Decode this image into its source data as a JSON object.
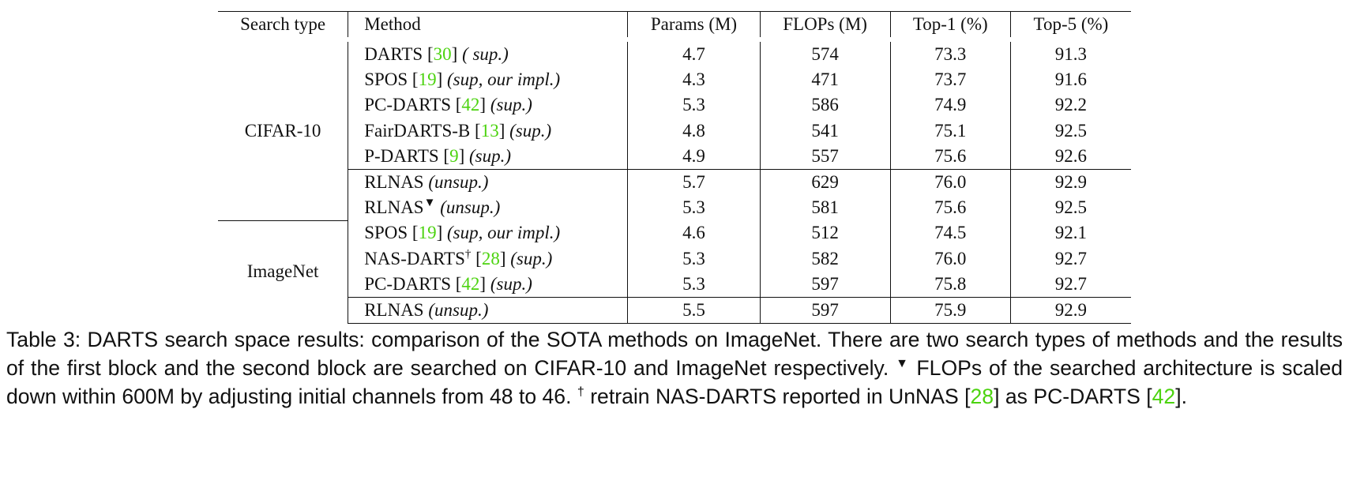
{
  "table": {
    "headers": [
      "Search type",
      "Method",
      "Params (M)",
      "FLOPs (M)",
      "Top-1 (%)",
      "Top-5 (%)"
    ],
    "groups": [
      {
        "search_type": "CIFAR-10",
        "rows": [
          {
            "method": "DARTS",
            "ref": "30",
            "tag": "( sup.)",
            "params": "4.7",
            "flops": "574",
            "top1": "73.3",
            "top5": "91.3"
          },
          {
            "method": "SPOS",
            "ref": "19",
            "tag": "(sup, our impl.)",
            "params": "4.3",
            "flops": "471",
            "top1": "73.7",
            "top5": "91.6"
          },
          {
            "method": "PC-DARTS",
            "ref": "42",
            "tag": "(sup.)",
            "params": "5.3",
            "flops": "586",
            "top1": "74.9",
            "top5": "92.2"
          },
          {
            "method": "FairDARTS-B",
            "ref": "13",
            "tag": "(sup.)",
            "params": "4.8",
            "flops": "541",
            "top1": "75.1",
            "top5": "92.5"
          },
          {
            "method": "P-DARTS",
            "ref": "9",
            "tag": "(sup.)",
            "params": "4.9",
            "flops": "557",
            "top1": "75.6",
            "top5": "92.6"
          },
          {
            "method": "RLNAS",
            "tag": "(unsup.)",
            "params": "5.7",
            "flops": "629",
            "top1": "76.0",
            "top5": "92.9"
          },
          {
            "method": "RLNAS",
            "mark": "▼",
            "tag": "(unsup.)",
            "params": "5.3",
            "flops": "581",
            "top1": "75.6",
            "top5": "92.5"
          }
        ]
      },
      {
        "search_type": "ImageNet",
        "rows": [
          {
            "method": "SPOS",
            "ref": "19",
            "tag": "(sup, our impl.)",
            "params": "4.6",
            "flops": "512",
            "top1": "74.5",
            "top5": "92.1"
          },
          {
            "method": "NAS-DARTS",
            "mark": "†",
            "ref": "28",
            "tag": "(sup.)",
            "params": "5.3",
            "flops": "582",
            "top1": "76.0",
            "top5": "92.7"
          },
          {
            "method": "PC-DARTS",
            "ref": "42",
            "tag": "(sup.)",
            "params": "5.3",
            "flops": "597",
            "top1": "75.8",
            "top5": "92.7"
          },
          {
            "method": "RLNAS",
            "tag": "(unsup.)",
            "params": "5.5",
            "flops": "597",
            "top1": "75.9",
            "top5": "92.9"
          }
        ]
      }
    ]
  },
  "caption": {
    "part1": "Table 3: DARTS search space results: comparison of the SOTA methods on ImageNet. There are two search types of methods and the results of the first block and the second block are searched on CIFAR-10 and ImageNet respectively.",
    "mark1": "▼",
    "part2": "FLOPs of the searched architecture is scaled down within 600M by adjusting initial channels from 48 to 46.",
    "mark2": "†",
    "part3": "retrain NAS-DARTS reported in UnNAS [",
    "ref1": "28",
    "part4": "] as PC-DARTS [",
    "ref2": "42",
    "part5": "]."
  }
}
